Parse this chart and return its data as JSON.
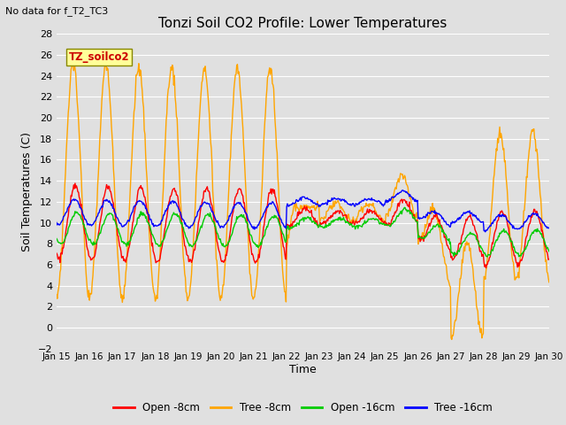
{
  "title": "Tonzi Soil CO2 Profile: Lower Temperatures",
  "subtitle": "No data for f_T2_TC3",
  "xlabel": "Time",
  "ylabel": "Soil Temperatures (C)",
  "ylim": [
    -2,
    28
  ],
  "yticks": [
    -2,
    0,
    2,
    4,
    6,
    8,
    10,
    12,
    14,
    16,
    18,
    20,
    22,
    24,
    26,
    28
  ],
  "xtick_labels": [
    "Jan 15",
    "Jan 16",
    "Jan 17",
    "Jan 18",
    "Jan 19",
    "Jan 20",
    "Jan 21",
    "Jan 22",
    "Jan 23",
    "Jan 24",
    "Jan 25",
    "Jan 26",
    "Jan 27",
    "Jan 28",
    "Jan 29",
    "Jan 30"
  ],
  "legend_entries": [
    "Open -8cm",
    "Tree -8cm",
    "Open -16cm",
    "Tree -16cm"
  ],
  "legend_colors": [
    "#ff0000",
    "#ffa500",
    "#00cc00",
    "#0000ff"
  ],
  "background_color": "#e0e0e0",
  "plot_bg_color": "#e0e0e0",
  "grid_color": "#ffffff",
  "annotation_box": "TZ_soilco2",
  "annotation_box_color": "#ffff99",
  "annotation_text_color": "#cc0000",
  "fig_width": 6.4,
  "fig_height": 4.8,
  "dpi": 100
}
